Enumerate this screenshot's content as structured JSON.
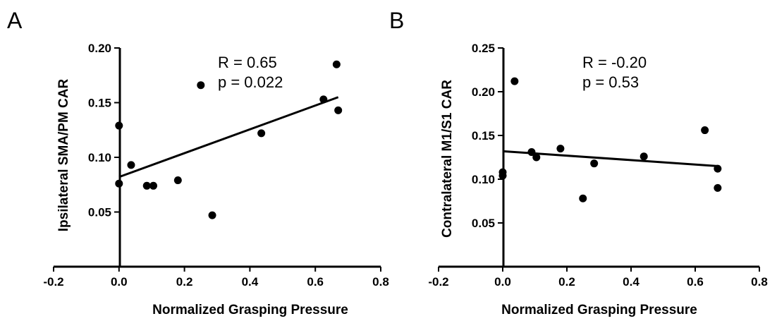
{
  "chart_data": [
    {
      "type": "scatter",
      "panel_label": "A",
      "xlabel": "Normalized Grasping Pressure",
      "ylabel": "Ipsilateral SMA/PM CAR",
      "xlim": [
        -0.2,
        0.8
      ],
      "ylim": [
        0.0,
        0.2
      ],
      "x_ticks": [
        -0.2,
        0.0,
        0.2,
        0.4,
        0.6,
        0.8
      ],
      "x_tick_labels": [
        "-0.2",
        "0.0",
        "0.2",
        "0.4",
        "0.6",
        "0.8"
      ],
      "y_ticks": [
        0.05,
        0.1,
        0.15,
        0.2
      ],
      "y_tick_labels": [
        "0.05",
        "0.10",
        "0.15",
        "0.20"
      ],
      "points": [
        {
          "x": 0.0,
          "y": 0.129
        },
        {
          "x": 0.0,
          "y": 0.076
        },
        {
          "x": 0.037,
          "y": 0.093
        },
        {
          "x": 0.085,
          "y": 0.074
        },
        {
          "x": 0.105,
          "y": 0.074
        },
        {
          "x": 0.18,
          "y": 0.079
        },
        {
          "x": 0.25,
          "y": 0.166
        },
        {
          "x": 0.285,
          "y": 0.047
        },
        {
          "x": 0.435,
          "y": 0.122
        },
        {
          "x": 0.625,
          "y": 0.153
        },
        {
          "x": 0.665,
          "y": 0.185
        },
        {
          "x": 0.67,
          "y": 0.143
        }
      ],
      "fit_line": {
        "x": [
          0.0,
          0.67
        ],
        "y": [
          0.082,
          0.155
        ]
      },
      "annotations": [
        "R = 0.65",
        "p = 0.022"
      ]
    },
    {
      "type": "scatter",
      "panel_label": "B",
      "xlabel": "Normalized Grasping Pressure",
      "ylabel": "Contralateral M1/S1 CAR",
      "xlim": [
        -0.2,
        0.8
      ],
      "ylim": [
        0.0,
        0.25
      ],
      "x_ticks": [
        -0.2,
        0.0,
        0.2,
        0.4,
        0.6,
        0.8
      ],
      "x_tick_labels": [
        "-0.2",
        "0.0",
        "0.2",
        "0.4",
        "0.6",
        "0.8"
      ],
      "y_ticks": [
        0.05,
        0.1,
        0.15,
        0.2,
        0.25
      ],
      "y_tick_labels": [
        "0.05",
        "0.10",
        "0.15",
        "0.20",
        "0.25"
      ],
      "points": [
        {
          "x": 0.0,
          "y": 0.108
        },
        {
          "x": 0.0,
          "y": 0.104
        },
        {
          "x": 0.037,
          "y": 0.212
        },
        {
          "x": 0.09,
          "y": 0.131
        },
        {
          "x": 0.105,
          "y": 0.125
        },
        {
          "x": 0.18,
          "y": 0.135
        },
        {
          "x": 0.25,
          "y": 0.078
        },
        {
          "x": 0.285,
          "y": 0.118
        },
        {
          "x": 0.44,
          "y": 0.126
        },
        {
          "x": 0.63,
          "y": 0.156
        },
        {
          "x": 0.67,
          "y": 0.112
        },
        {
          "x": 0.67,
          "y": 0.09
        }
      ],
      "fit_line": {
        "x": [
          0.0,
          0.67
        ],
        "y": [
          0.132,
          0.115
        ]
      },
      "annotations": [
        "R = -0.20",
        "p = 0.53"
      ]
    }
  ]
}
